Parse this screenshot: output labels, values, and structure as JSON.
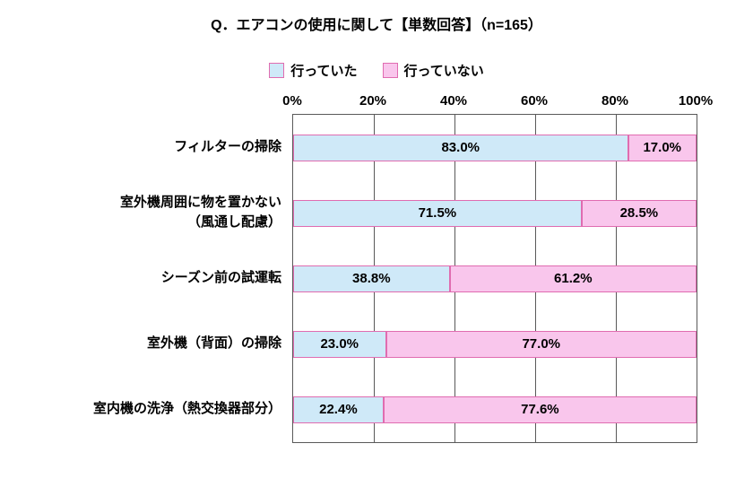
{
  "chart_data": {
    "type": "bar",
    "orientation": "horizontal-stacked",
    "title": "Q．エアコンの使用に関して【単数回答】（n=165）",
    "categories": [
      [
        "フィルターの掃除"
      ],
      [
        "室外機周囲に物を置かない",
        "（風通し配慮）"
      ],
      [
        "シーズン前の試運転"
      ],
      [
        "室外機（背面）の掃除"
      ],
      [
        "室内機の洗浄（熱交換器部分）"
      ]
    ],
    "series": [
      {
        "name": "行っていた",
        "color": "#cfe9f8",
        "values": [
          83.0,
          71.5,
          38.8,
          23.0,
          22.4
        ]
      },
      {
        "name": "行っていない",
        "color": "#f9c6ec",
        "values": [
          17.0,
          28.5,
          61.2,
          77.0,
          77.6
        ]
      }
    ],
    "value_labels": [
      [
        "83.0%",
        "17.0%"
      ],
      [
        "71.5%",
        "28.5%"
      ],
      [
        "38.8%",
        "61.2%"
      ],
      [
        "23.0%",
        "77.0%"
      ],
      [
        "22.4%",
        "77.6%"
      ]
    ],
    "x_ticks": [
      "0%",
      "20%",
      "40%",
      "60%",
      "80%",
      "100%"
    ],
    "xlim": [
      0,
      100
    ],
    "grid": "vertical-on",
    "legend_position": "top-center"
  },
  "colors": {
    "segment_border": "#e06cb0",
    "gridline": "#595959",
    "background": "#ffffff"
  }
}
